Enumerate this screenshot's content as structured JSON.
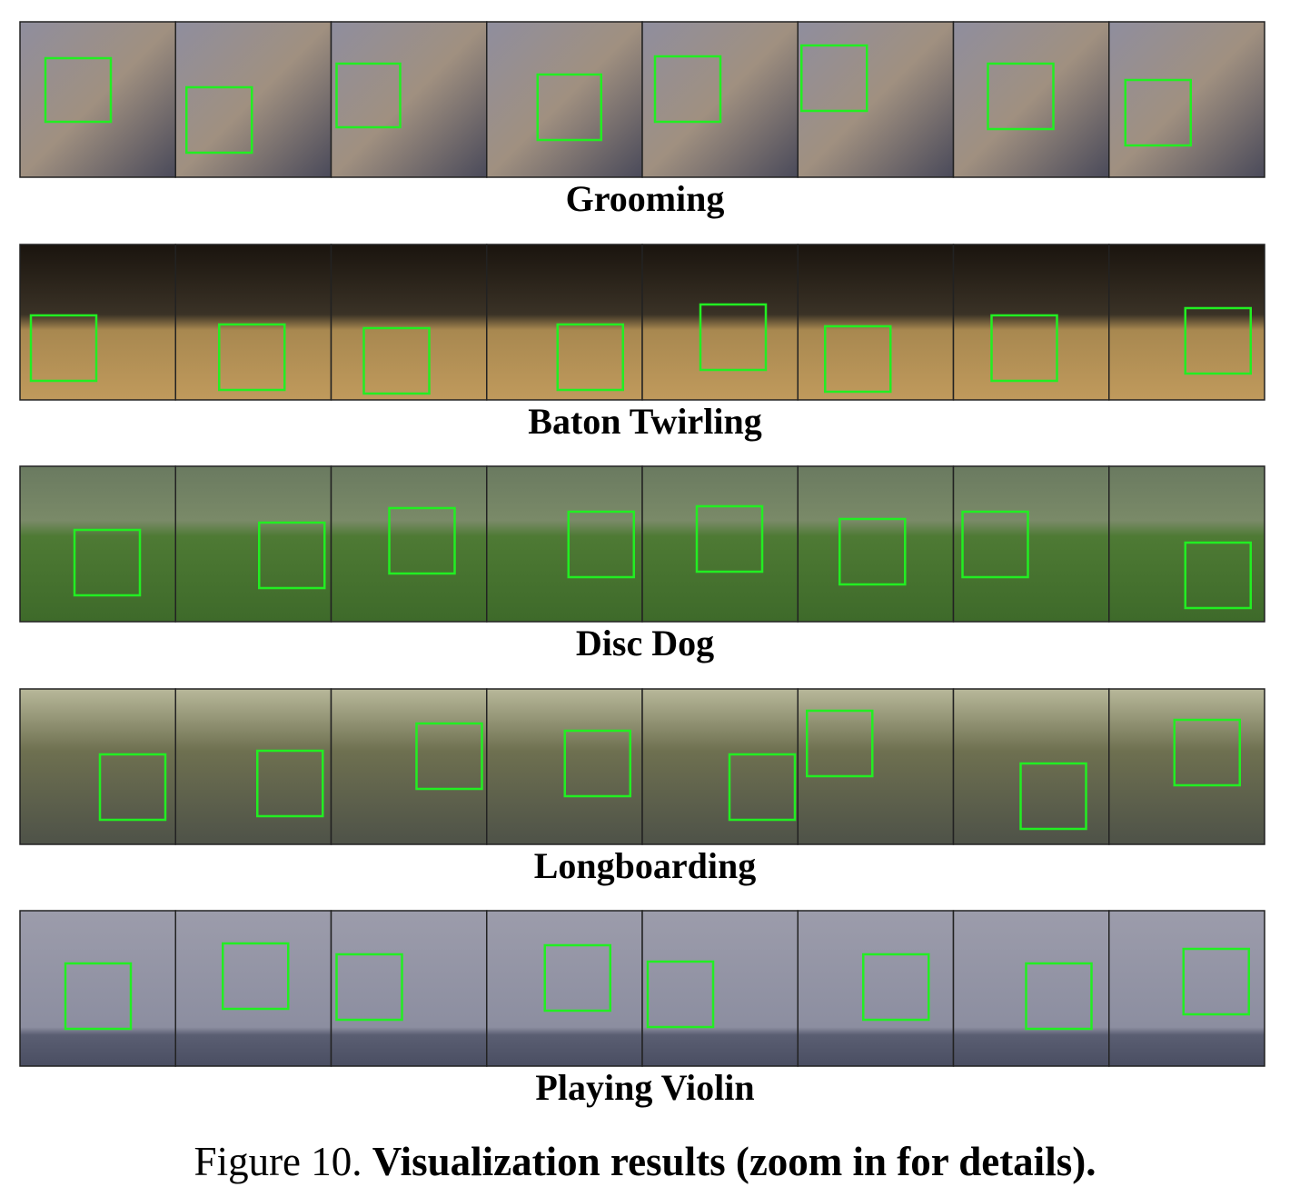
{
  "rows": [
    {
      "label": "Grooming"
    },
    {
      "label": "Baton Twirling"
    },
    {
      "label": "Disc Dog"
    },
    {
      "label": "Longboarding"
    },
    {
      "label": "Playing Violin"
    }
  ],
  "caption": {
    "prefix": "Figure 10.",
    "text": "Visualization results (zoom in for details)."
  }
}
